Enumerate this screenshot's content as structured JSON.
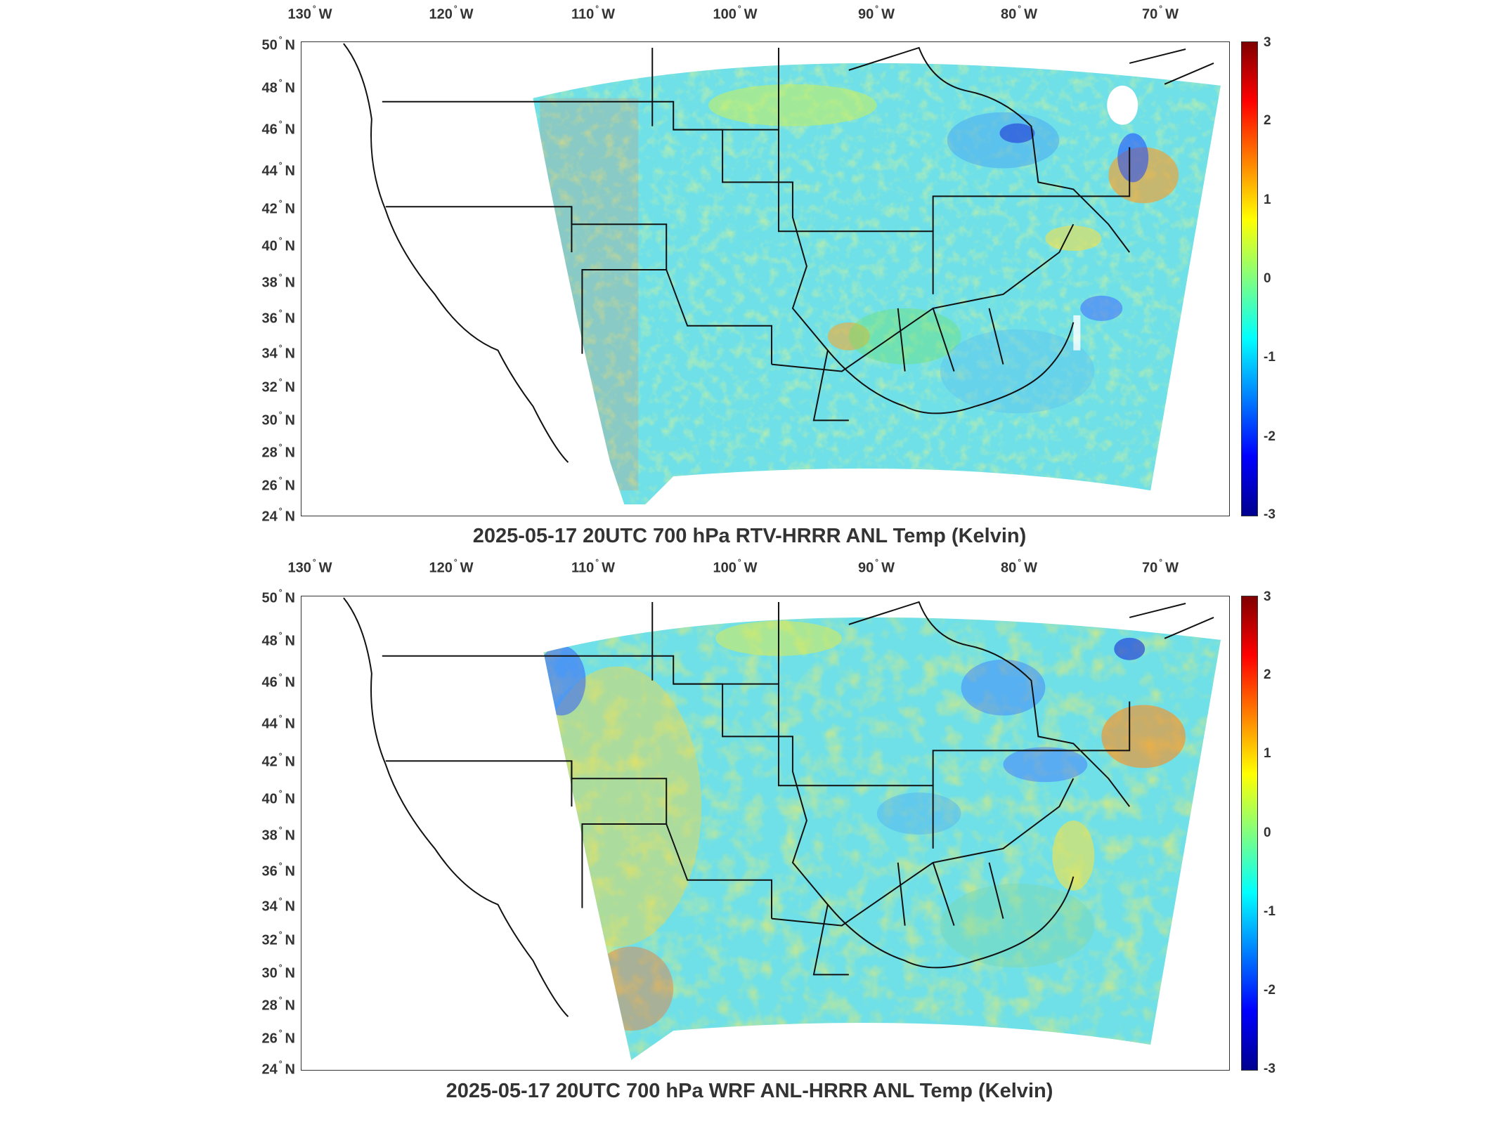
{
  "panels": [
    {
      "title": "2025-05-17 20UTC 700 hPa RTV-HRRR ANL Temp (Kelvin)",
      "lon_labels": [
        "130",
        "120",
        "110",
        "100",
        "90",
        "80",
        "70"
      ],
      "lon_suffix": "W",
      "lat_labels": [
        "50",
        "48",
        "46",
        "44",
        "42",
        "40",
        "38",
        "36",
        "34",
        "32",
        "30",
        "28",
        "26",
        "24"
      ],
      "lat_suffix": "N",
      "colorbar_ticks": [
        "3",
        "2",
        "1",
        "0",
        "-1",
        "-2",
        "-3"
      ]
    },
    {
      "title": "2025-05-17 20UTC 700 hPa WRF ANL-HRRR ANL Temp (Kelvin)",
      "lon_labels": [
        "130",
        "120",
        "110",
        "100",
        "90",
        "80",
        "70"
      ],
      "lon_suffix": "W",
      "lat_labels": [
        "50",
        "48",
        "46",
        "44",
        "42",
        "40",
        "38",
        "36",
        "34",
        "32",
        "30",
        "28",
        "26",
        "24"
      ],
      "lat_suffix": "N",
      "colorbar_ticks": [
        "3",
        "2",
        "1",
        "0",
        "-1",
        "-2",
        "-3"
      ]
    }
  ],
  "colorbar": {
    "min": -3,
    "max": 3,
    "colormap": [
      "#00008f",
      "#0000ff",
      "#0080ff",
      "#00ffff",
      "#80ff80",
      "#ffff00",
      "#ff8000",
      "#ff0000",
      "#800000"
    ]
  },
  "map": {
    "projection": "lambert-conformal",
    "lon_range": [
      -130,
      -65
    ],
    "lat_range": [
      24,
      50
    ],
    "basemap": "US state boundaries and coastlines",
    "field_background": "#6fe0e8"
  }
}
